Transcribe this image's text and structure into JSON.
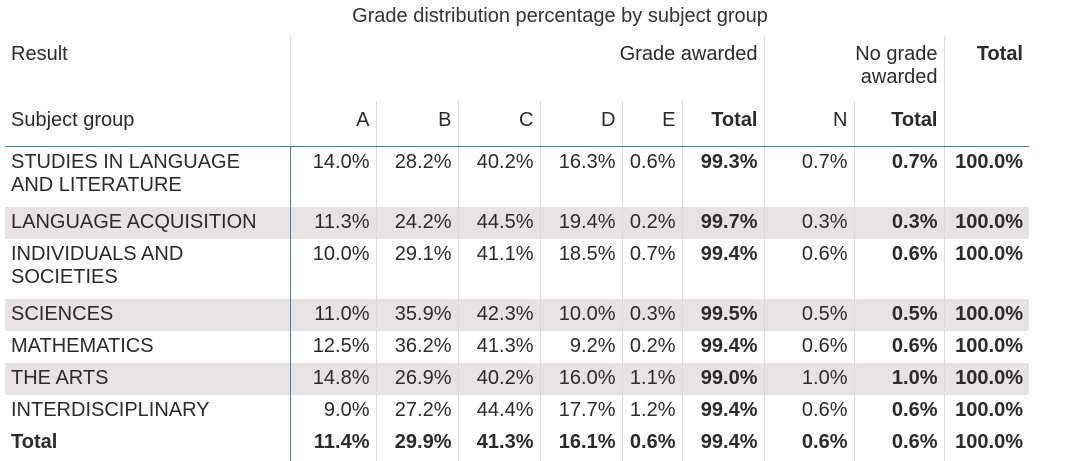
{
  "chart_data": {
    "type": "table",
    "title": "Grade distribution percentage by subject group",
    "header_row1": {
      "result": "Result",
      "grade_awarded": "Grade awarded",
      "no_grade_awarded": "No grade awarded",
      "total": "Total"
    },
    "header_row2": [
      "Subject group",
      "A",
      "B",
      "C",
      "D",
      "E",
      "Total",
      "N",
      "Total"
    ],
    "rows": [
      {
        "label": "STUDIES IN LANGUAGE AND LITERATURE",
        "values": [
          "14.0%",
          "28.2%",
          "40.2%",
          "16.3%",
          "0.6%",
          "99.3%",
          "0.7%",
          "0.7%",
          "100.0%"
        ]
      },
      {
        "label": "LANGUAGE ACQUISITION",
        "values": [
          "11.3%",
          "24.2%",
          "44.5%",
          "19.4%",
          "0.2%",
          "99.7%",
          "0.3%",
          "0.3%",
          "100.0%"
        ]
      },
      {
        "label": "INDIVIDUALS AND SOCIETIES",
        "values": [
          "10.0%",
          "29.1%",
          "41.1%",
          "18.5%",
          "0.7%",
          "99.4%",
          "0.6%",
          "0.6%",
          "100.0%"
        ]
      },
      {
        "label": "SCIENCES",
        "values": [
          "11.0%",
          "35.9%",
          "42.3%",
          "10.0%",
          "0.3%",
          "99.5%",
          "0.5%",
          "0.5%",
          "100.0%"
        ]
      },
      {
        "label": "MATHEMATICS",
        "values": [
          "12.5%",
          "36.2%",
          "41.3%",
          "9.2%",
          "0.2%",
          "99.4%",
          "0.6%",
          "0.6%",
          "100.0%"
        ]
      },
      {
        "label": "THE ARTS",
        "values": [
          "14.8%",
          "26.9%",
          "40.2%",
          "16.0%",
          "1.1%",
          "99.0%",
          "1.0%",
          "1.0%",
          "100.0%"
        ]
      },
      {
        "label": "INTERDISCIPLINARY",
        "values": [
          "9.0%",
          "27.2%",
          "44.4%",
          "17.7%",
          "1.2%",
          "99.4%",
          "0.6%",
          "0.6%",
          "100.0%"
        ]
      }
    ],
    "total_row": {
      "label": "Total",
      "values": [
        "11.4%",
        "29.9%",
        "41.3%",
        "16.1%",
        "0.6%",
        "99.4%",
        "0.6%",
        "0.6%",
        "100.0%"
      ]
    },
    "colors": {
      "accent_line": "#3c83bd",
      "row_shade": "#e7e3e2"
    }
  }
}
